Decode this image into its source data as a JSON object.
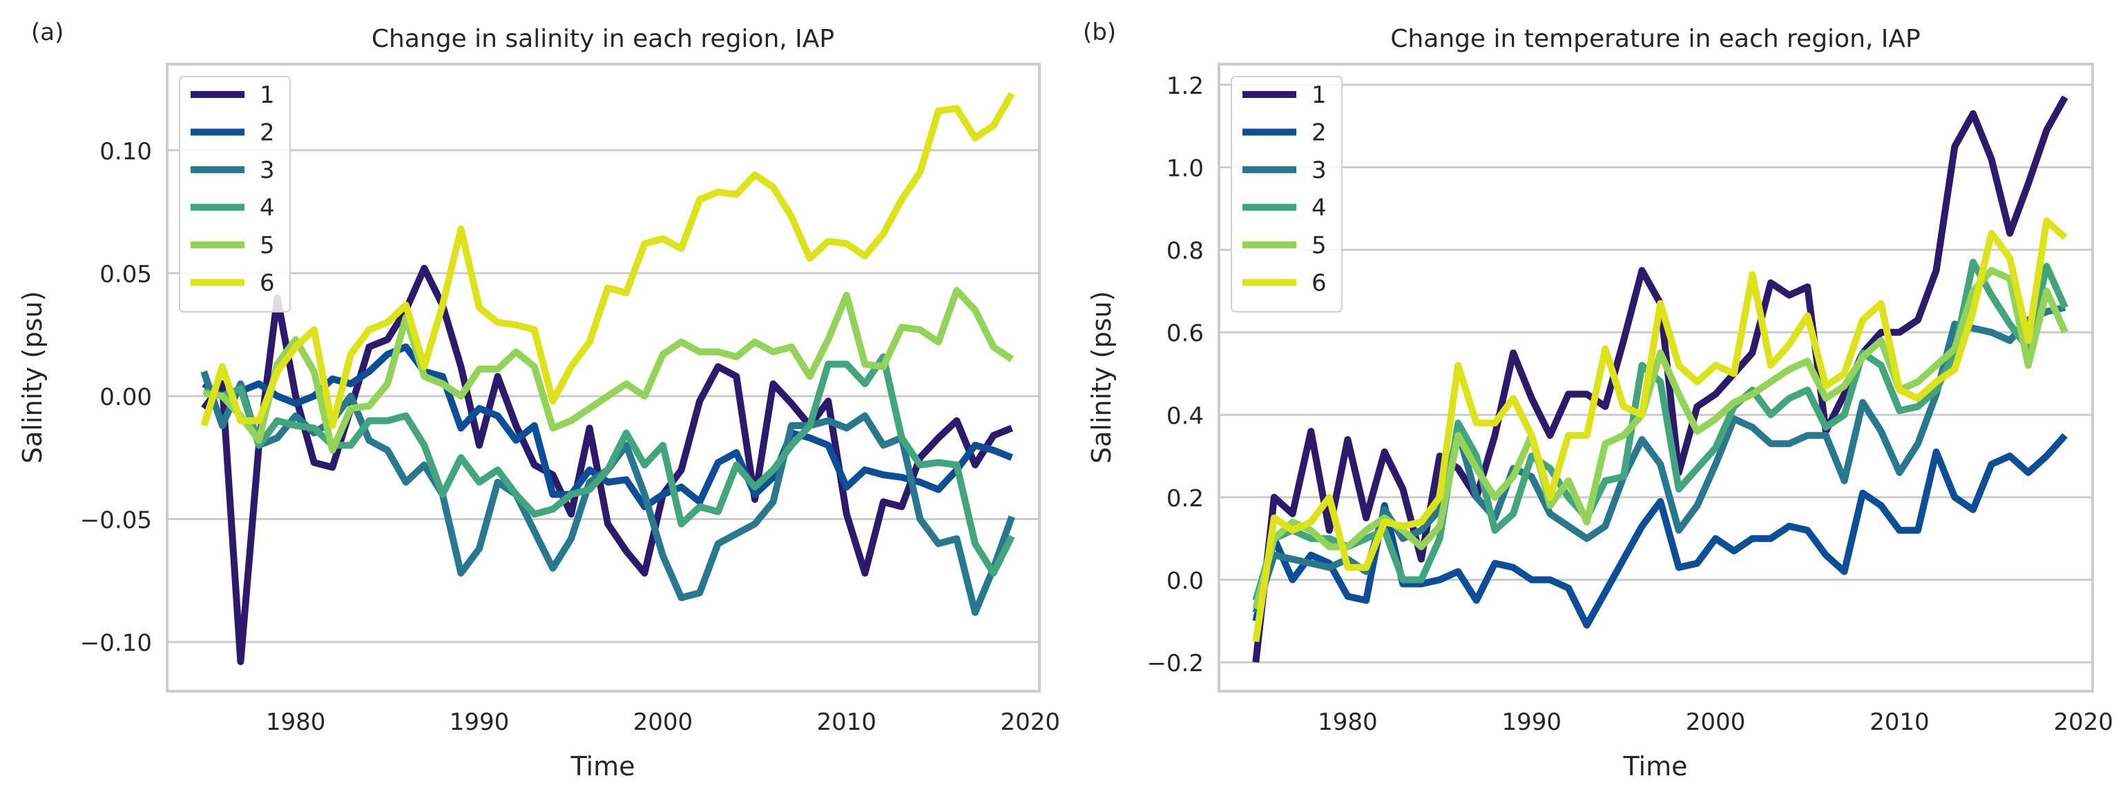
{
  "chart_data": [
    {
      "panel_label": "(a)",
      "type": "line",
      "title": "Change in salinity in each region, IAP",
      "xlabel": "Time",
      "ylabel": "Salinity (psu)",
      "xlim": [
        1973,
        2020.5
      ],
      "ylim": [
        -0.12,
        0.135
      ],
      "xticks": [
        1980,
        1990,
        2000,
        2010,
        2020
      ],
      "yticks": [
        -0.1,
        -0.05,
        0.0,
        0.05,
        0.1
      ],
      "ytick_labels": [
        "−0.10",
        "−0.05",
        "0.00",
        "0.05",
        "0.10"
      ],
      "grid": "horizontal",
      "legend_position": "top-left",
      "x": [
        1975,
        1976,
        1977,
        1978,
        1979,
        1980,
        1981,
        1982,
        1983,
        1984,
        1985,
        1986,
        1987,
        1988,
        1989,
        1990,
        1991,
        1992,
        1993,
        1994,
        1995,
        1996,
        1997,
        1998,
        1999,
        2000,
        2001,
        2002,
        2003,
        2004,
        2005,
        2006,
        2007,
        2008,
        2009,
        2010,
        2011,
        2012,
        2013,
        2014,
        2015,
        2016,
        2017,
        2018,
        2019
      ],
      "series": [
        {
          "name": "1",
          "color": "#2c1a6b",
          "values": [
            -0.005,
            0.005,
            -0.108,
            -0.02,
            0.04,
            0.0,
            -0.027,
            -0.029,
            -0.005,
            0.02,
            0.023,
            0.035,
            0.052,
            0.037,
            0.012,
            -0.02,
            0.008,
            -0.012,
            -0.028,
            -0.032,
            -0.048,
            -0.013,
            -0.052,
            -0.063,
            -0.072,
            -0.04,
            -0.03,
            -0.002,
            0.012,
            0.008,
            -0.042,
            0.005,
            -0.003,
            -0.012,
            -0.002,
            -0.048,
            -0.072,
            -0.043,
            -0.045,
            -0.025,
            -0.017,
            -0.01,
            -0.028,
            -0.016,
            -0.013
          ]
        },
        {
          "name": "2",
          "color": "#0d4e96",
          "values": [
            0.005,
            0.0,
            0.002,
            0.005,
            0.0,
            -0.003,
            0.0,
            0.007,
            0.005,
            0.01,
            0.017,
            0.02,
            0.01,
            0.008,
            -0.013,
            -0.005,
            -0.008,
            -0.018,
            -0.012,
            -0.04,
            -0.04,
            -0.03,
            -0.035,
            -0.034,
            -0.045,
            -0.04,
            -0.037,
            -0.043,
            -0.027,
            -0.023,
            -0.04,
            -0.033,
            -0.015,
            -0.017,
            -0.02,
            -0.037,
            -0.03,
            -0.032,
            -0.033,
            -0.035,
            -0.038,
            -0.03,
            -0.02,
            -0.022,
            -0.025
          ]
        },
        {
          "name": "3",
          "color": "#2a788e",
          "values": [
            0.01,
            -0.012,
            0.005,
            -0.02,
            -0.017,
            -0.008,
            -0.015,
            -0.01,
            0.0,
            -0.018,
            -0.022,
            -0.035,
            -0.028,
            -0.04,
            -0.072,
            -0.062,
            -0.035,
            -0.04,
            -0.055,
            -0.07,
            -0.058,
            -0.035,
            -0.03,
            -0.02,
            -0.04,
            -0.065,
            -0.082,
            -0.08,
            -0.06,
            -0.056,
            -0.052,
            -0.043,
            -0.012,
            -0.012,
            -0.01,
            -0.013,
            -0.008,
            -0.02,
            -0.017,
            -0.05,
            -0.06,
            -0.058,
            -0.088,
            -0.07,
            -0.049
          ]
        },
        {
          "name": "4",
          "color": "#43a57e",
          "values": [
            0.002,
            0.0,
            0.003,
            -0.02,
            -0.01,
            -0.012,
            -0.013,
            -0.02,
            -0.02,
            -0.01,
            -0.01,
            -0.008,
            -0.02,
            -0.04,
            -0.025,
            -0.035,
            -0.03,
            -0.04,
            -0.048,
            -0.046,
            -0.04,
            -0.038,
            -0.03,
            -0.015,
            -0.028,
            -0.02,
            -0.052,
            -0.045,
            -0.047,
            -0.028,
            -0.037,
            -0.03,
            -0.02,
            -0.012,
            0.013,
            0.013,
            0.005,
            0.016,
            -0.017,
            -0.028,
            -0.027,
            -0.028,
            -0.06,
            -0.072,
            -0.057
          ]
        },
        {
          "name": "5",
          "color": "#93d35a",
          "values": [
            0.001,
            0.0,
            -0.008,
            -0.018,
            0.013,
            0.023,
            0.01,
            -0.022,
            -0.005,
            -0.004,
            0.005,
            0.032,
            0.008,
            0.005,
            0.0,
            0.011,
            0.011,
            0.018,
            0.012,
            -0.013,
            -0.01,
            -0.005,
            0.0,
            0.005,
            0.0,
            0.017,
            0.022,
            0.018,
            0.018,
            0.016,
            0.022,
            0.018,
            0.02,
            0.008,
            0.023,
            0.041,
            0.013,
            0.012,
            0.028,
            0.027,
            0.022,
            0.043,
            0.035,
            0.02,
            0.015
          ]
        },
        {
          "name": "6",
          "color": "#dde31b",
          "values": [
            -0.012,
            0.012,
            -0.01,
            -0.01,
            0.01,
            0.02,
            0.027,
            -0.012,
            0.017,
            0.027,
            0.03,
            0.037,
            0.012,
            0.037,
            0.068,
            0.036,
            0.03,
            0.029,
            0.027,
            -0.002,
            0.012,
            0.022,
            0.044,
            0.042,
            0.062,
            0.064,
            0.06,
            0.08,
            0.083,
            0.082,
            0.09,
            0.085,
            0.073,
            0.056,
            0.063,
            0.062,
            0.057,
            0.066,
            0.08,
            0.091,
            0.116,
            0.117,
            0.105,
            0.11,
            0.123
          ]
        }
      ]
    },
    {
      "panel_label": "(b)",
      "type": "line",
      "title": "Change in temperature in each region, IAP",
      "xlabel": "Time",
      "ylabel": "Salinity (psu)",
      "xlim": [
        1973,
        2020.5
      ],
      "ylim": [
        -0.27,
        1.25
      ],
      "xticks": [
        1980,
        1990,
        2000,
        2010,
        2020
      ],
      "yticks": [
        -0.2,
        0.0,
        0.2,
        0.4,
        0.6,
        0.8,
        1.0,
        1.2
      ],
      "ytick_labels": [
        "−0.2",
        "0.0",
        "0.2",
        "0.4",
        "0.6",
        "0.8",
        "1.0",
        "1.2"
      ],
      "grid": "horizontal",
      "legend_position": "top-left",
      "x": [
        1975,
        1976,
        1977,
        1978,
        1979,
        1980,
        1981,
        1982,
        1983,
        1984,
        1985,
        1986,
        1987,
        1988,
        1989,
        1990,
        1991,
        1992,
        1993,
        1994,
        1995,
        1996,
        1997,
        1998,
        1999,
        2000,
        2001,
        2002,
        2003,
        2004,
        2005,
        2006,
        2007,
        2008,
        2009,
        2010,
        2011,
        2012,
        2013,
        2014,
        2015,
        2016,
        2017,
        2018,
        2019
      ],
      "series": [
        {
          "name": "1",
          "color": "#2c1a6b",
          "values": [
            -0.2,
            0.2,
            0.16,
            0.36,
            0.12,
            0.34,
            0.15,
            0.31,
            0.22,
            0.05,
            0.3,
            0.27,
            0.2,
            0.35,
            0.55,
            0.44,
            0.35,
            0.45,
            0.45,
            0.42,
            0.58,
            0.75,
            0.67,
            0.26,
            0.42,
            0.45,
            0.5,
            0.55,
            0.72,
            0.69,
            0.71,
            0.36,
            0.45,
            0.55,
            0.6,
            0.6,
            0.63,
            0.75,
            1.05,
            1.13,
            1.02,
            0.84,
            0.96,
            1.09,
            1.17
          ]
        },
        {
          "name": "2",
          "color": "#0d4e96",
          "values": [
            -0.1,
            0.1,
            0.0,
            0.06,
            0.04,
            -0.04,
            -0.05,
            0.18,
            -0.01,
            -0.01,
            0.0,
            0.02,
            -0.05,
            0.04,
            0.03,
            0.0,
            0.0,
            -0.02,
            -0.11,
            -0.03,
            0.05,
            0.13,
            0.19,
            0.03,
            0.04,
            0.1,
            0.07,
            0.1,
            0.1,
            0.13,
            0.12,
            0.06,
            0.02,
            0.21,
            0.18,
            0.12,
            0.12,
            0.31,
            0.2,
            0.17,
            0.28,
            0.3,
            0.26,
            0.3,
            0.35
          ]
        },
        {
          "name": "3",
          "color": "#2a788e",
          "values": [
            -0.08,
            0.06,
            0.05,
            0.04,
            0.03,
            0.05,
            0.02,
            0.17,
            0.1,
            0.12,
            0.17,
            0.36,
            0.2,
            0.15,
            0.27,
            0.25,
            0.16,
            0.13,
            0.1,
            0.13,
            0.25,
            0.34,
            0.28,
            0.12,
            0.18,
            0.28,
            0.39,
            0.37,
            0.33,
            0.33,
            0.35,
            0.35,
            0.24,
            0.43,
            0.36,
            0.26,
            0.33,
            0.45,
            0.62,
            0.61,
            0.6,
            0.58,
            0.63,
            0.65,
            0.66
          ]
        },
        {
          "name": "4",
          "color": "#43a57e",
          "values": [
            -0.05,
            0.1,
            0.12,
            0.1,
            0.1,
            0.08,
            0.1,
            0.12,
            0.0,
            0.0,
            0.1,
            0.38,
            0.3,
            0.12,
            0.16,
            0.3,
            0.27,
            0.2,
            0.15,
            0.24,
            0.25,
            0.52,
            0.48,
            0.22,
            0.27,
            0.32,
            0.42,
            0.46,
            0.4,
            0.44,
            0.46,
            0.37,
            0.4,
            0.55,
            0.52,
            0.41,
            0.42,
            0.46,
            0.55,
            0.77,
            0.69,
            0.62,
            0.56,
            0.76,
            0.66
          ]
        },
        {
          "name": "5",
          "color": "#93d35a",
          "values": [
            -0.07,
            0.1,
            0.14,
            0.12,
            0.08,
            0.08,
            0.12,
            0.15,
            0.12,
            0.08,
            0.13,
            0.35,
            0.27,
            0.2,
            0.25,
            0.35,
            0.18,
            0.24,
            0.14,
            0.33,
            0.35,
            0.4,
            0.55,
            0.45,
            0.36,
            0.39,
            0.43,
            0.45,
            0.48,
            0.51,
            0.53,
            0.44,
            0.47,
            0.54,
            0.58,
            0.46,
            0.48,
            0.52,
            0.56,
            0.7,
            0.75,
            0.73,
            0.52,
            0.7,
            0.6
          ]
        },
        {
          "name": "6",
          "color": "#dde31b",
          "values": [
            -0.15,
            0.15,
            0.12,
            0.14,
            0.2,
            0.03,
            0.03,
            0.14,
            0.13,
            0.14,
            0.2,
            0.52,
            0.38,
            0.38,
            0.44,
            0.35,
            0.2,
            0.35,
            0.35,
            0.56,
            0.42,
            0.4,
            0.67,
            0.52,
            0.48,
            0.52,
            0.5,
            0.74,
            0.52,
            0.57,
            0.64,
            0.47,
            0.5,
            0.63,
            0.67,
            0.46,
            0.44,
            0.48,
            0.51,
            0.65,
            0.84,
            0.78,
            0.58,
            0.87,
            0.83
          ]
        }
      ]
    }
  ]
}
